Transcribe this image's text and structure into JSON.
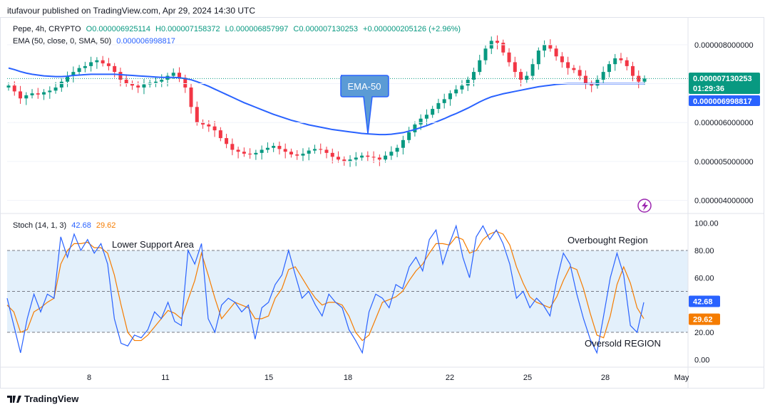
{
  "header": {
    "publisher_line": "itufavour published on TradingView.com, Apr 29, 2024 14:30 UTC"
  },
  "legend": {
    "symbol": "Pepe, 4h, CRYPTO",
    "open": "O0.000006925114",
    "high": "H0.000007158372",
    "low": "L0.000006857997",
    "close": "C0.000007130253",
    "change": "+0.000000205126 (+2.96%)",
    "ema_label": "EMA (50, close, 0, SMA, 50)",
    "ema_value": "0.000006998817",
    "stoch_label": "Stoch (14, 1, 3)",
    "stoch_k": "42.68",
    "stoch_d": "29.62"
  },
  "annotations": {
    "ema_callout": "EMA-50",
    "lower_support": "Lower Support Area",
    "overbought": "Overbought Region",
    "oversold": "Oversold REGION"
  },
  "price_badges": {
    "last_price": "0.000007130253",
    "countdown": "01:29:36",
    "ema_price": "0.000006998817"
  },
  "footer": {
    "brand": "TradingView"
  },
  "colors": {
    "up": "#089981",
    "down": "#f23645",
    "ema": "#2962ff",
    "stoch_k": "#2962ff",
    "stoch_d": "#f57c00",
    "band_fill": "#e3f0fb"
  },
  "chart_data": [
    {
      "type": "candlestick",
      "x_tick_labels": [
        "8",
        "11",
        "15",
        "18",
        "22",
        "25",
        "28",
        "May"
      ],
      "y_tick_labels": [
        "0.000008000000",
        "0.000007000000",
        "0.000006000000",
        "0.000005000000",
        "0.000004000000"
      ],
      "ylim": [
        3.7e-06,
        8.6e-06
      ],
      "grid": true,
      "close_series": [
        6.95,
        6.8,
        6.62,
        6.7,
        6.75,
        6.72,
        6.78,
        6.82,
        6.9,
        7.05,
        7.2,
        7.3,
        7.4,
        7.45,
        7.55,
        7.6,
        7.52,
        7.45,
        7.3,
        7.1,
        7.0,
        6.95,
        6.9,
        6.98,
        7.02,
        7.05,
        7.1,
        7.2,
        7.28,
        7.15,
        6.9,
        6.4,
        6.0,
        5.95,
        5.9,
        5.8,
        5.6,
        5.45,
        5.3,
        5.25,
        5.2,
        5.18,
        5.22,
        5.3,
        5.35,
        5.4,
        5.32,
        5.25,
        5.18,
        5.15,
        5.2,
        5.28,
        5.32,
        5.3,
        5.22,
        5.12,
        5.05,
        5.0,
        5.05,
        5.1,
        5.15,
        5.12,
        5.1,
        5.05,
        5.15,
        5.25,
        5.35,
        5.55,
        5.75,
        5.95,
        6.1,
        6.2,
        6.35,
        6.5,
        6.6,
        6.75,
        6.85,
        6.95,
        7.1,
        7.3,
        7.6,
        7.9,
        8.1,
        8.05,
        7.8,
        7.55,
        7.3,
        7.1,
        7.2,
        7.5,
        7.85,
        8.0,
        7.9,
        7.7,
        7.55,
        7.4,
        7.35,
        7.2,
        7.0,
        6.95,
        7.1,
        7.3,
        7.5,
        7.65,
        7.6,
        7.45,
        7.2,
        7.05,
        7.13
      ],
      "ema50_series": [
        7.4,
        7.36,
        7.31,
        7.27,
        7.24,
        7.22,
        7.2,
        7.19,
        7.18,
        7.18,
        7.19,
        7.21,
        7.22,
        7.23,
        7.24,
        7.24,
        7.24,
        7.24,
        7.24,
        7.23,
        7.22,
        7.21,
        7.2,
        7.19,
        7.18,
        7.17,
        7.16,
        7.16,
        7.16,
        7.15,
        7.13,
        7.1,
        7.05,
        6.99,
        6.93,
        6.86,
        6.79,
        6.72,
        6.65,
        6.58,
        6.51,
        6.45,
        6.39,
        6.33,
        6.27,
        6.21,
        6.16,
        6.11,
        6.06,
        6.02,
        5.98,
        5.94,
        5.91,
        5.88,
        5.85,
        5.82,
        5.8,
        5.78,
        5.76,
        5.74,
        5.72,
        5.71,
        5.7,
        5.69,
        5.69,
        5.7,
        5.72,
        5.74,
        5.78,
        5.82,
        5.87,
        5.92,
        5.98,
        6.04,
        6.1,
        6.17,
        6.23,
        6.3,
        6.37,
        6.45,
        6.53,
        6.6,
        6.66,
        6.7,
        6.74,
        6.77,
        6.8,
        6.83,
        6.86,
        6.89,
        6.92,
        6.94,
        6.96,
        6.98,
        6.99,
        7.0,
        7.0,
        7.0,
        7.0,
        7.0,
        7.0,
        7.0,
        7.0,
        7.0,
        7.0,
        7.0,
        7.0,
        7.0,
        7.0
      ]
    },
    {
      "type": "line",
      "title": "Stoch (14, 1, 3)",
      "y_tick_labels": [
        "100.00",
        "80.00",
        "60.00",
        "40.00",
        "20.00",
        "0.00"
      ],
      "ylim": [
        -5,
        105
      ],
      "bands": {
        "upper": 80,
        "middle": 50,
        "lower": 20
      },
      "series": [
        {
          "name": "%K",
          "values": [
            45,
            25,
            5,
            30,
            48,
            35,
            48,
            45,
            90,
            75,
            92,
            80,
            88,
            78,
            85,
            70,
            30,
            12,
            10,
            18,
            16,
            22,
            35,
            30,
            42,
            28,
            25,
            80,
            70,
            85,
            30,
            20,
            40,
            45,
            42,
            35,
            40,
            15,
            38,
            42,
            55,
            62,
            80,
            62,
            45,
            50,
            40,
            32,
            48,
            42,
            38,
            22,
            14,
            5,
            35,
            48,
            45,
            38,
            55,
            52,
            68,
            75,
            65,
            88,
            95,
            70,
            85,
            98,
            75,
            60,
            90,
            98,
            88,
            95,
            85,
            70,
            45,
            50,
            38,
            45,
            40,
            32,
            58,
            78,
            70,
            48,
            30,
            15,
            5,
            32,
            60,
            78,
            62,
            25,
            20,
            42
          ]
        },
        {
          "name": "%D",
          "values": [
            40,
            35,
            20,
            22,
            35,
            38,
            42,
            45,
            70,
            80,
            85,
            85,
            86,
            82,
            82,
            78,
            62,
            40,
            20,
            14,
            14,
            18,
            24,
            30,
            36,
            34,
            30,
            44,
            58,
            78,
            62,
            45,
            30,
            36,
            42,
            40,
            38,
            30,
            30,
            32,
            45,
            52,
            66,
            68,
            60,
            52,
            45,
            40,
            42,
            42,
            40,
            32,
            20,
            14,
            18,
            30,
            42,
            44,
            46,
            50,
            58,
            65,
            70,
            78,
            85,
            85,
            84,
            90,
            88,
            78,
            80,
            88,
            92,
            94,
            92,
            84,
            68,
            56,
            46,
            42,
            40,
            38,
            46,
            58,
            68,
            66,
            52,
            34,
            18,
            16,
            32,
            55,
            68,
            56,
            38,
            30
          ]
        }
      ]
    }
  ]
}
